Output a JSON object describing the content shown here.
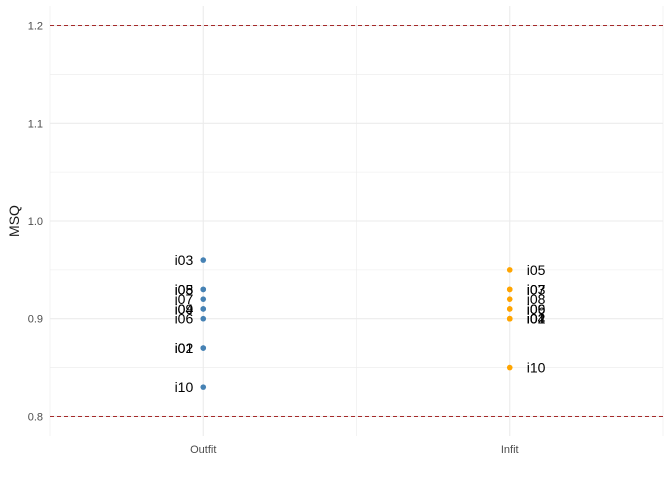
{
  "chart_data": {
    "type": "scatter",
    "title": "",
    "xlabel": "",
    "ylabel": "MSQ",
    "categories": [
      "Outfit",
      "Infit"
    ],
    "ylim": [
      0.78,
      1.22
    ],
    "yticks": [
      "0.8",
      "0.9",
      "1.0",
      "1.1",
      "1.2"
    ],
    "grid": true,
    "reference_lines": [
      0.8,
      1.2
    ],
    "colors": {
      "Outfit": "#4682b4",
      "Infit": "#ffa500",
      "reference": "#a52a2a",
      "grid": "#ebebeb"
    },
    "series": [
      {
        "category": "Outfit",
        "label_side": "left",
        "points": [
          {
            "item": "i01",
            "value": 0.87
          },
          {
            "item": "i02",
            "value": 0.87
          },
          {
            "item": "i03",
            "value": 0.96
          },
          {
            "item": "i04",
            "value": 0.91
          },
          {
            "item": "i05",
            "value": 0.93
          },
          {
            "item": "i06",
            "value": 0.9
          },
          {
            "item": "i07",
            "value": 0.92
          },
          {
            "item": "i08",
            "value": 0.93
          },
          {
            "item": "i09",
            "value": 0.91
          },
          {
            "item": "i10",
            "value": 0.83
          }
        ]
      },
      {
        "category": "Infit",
        "label_side": "right",
        "points": [
          {
            "item": "i01",
            "value": 0.9
          },
          {
            "item": "i02",
            "value": 0.9
          },
          {
            "item": "i03",
            "value": 0.93
          },
          {
            "item": "i04",
            "value": 0.9
          },
          {
            "item": "i05",
            "value": 0.95
          },
          {
            "item": "i06",
            "value": 0.91
          },
          {
            "item": "i07",
            "value": 0.93
          },
          {
            "item": "i08",
            "value": 0.92
          },
          {
            "item": "i09",
            "value": 0.91
          },
          {
            "item": "i10",
            "value": 0.85
          }
        ]
      }
    ]
  }
}
